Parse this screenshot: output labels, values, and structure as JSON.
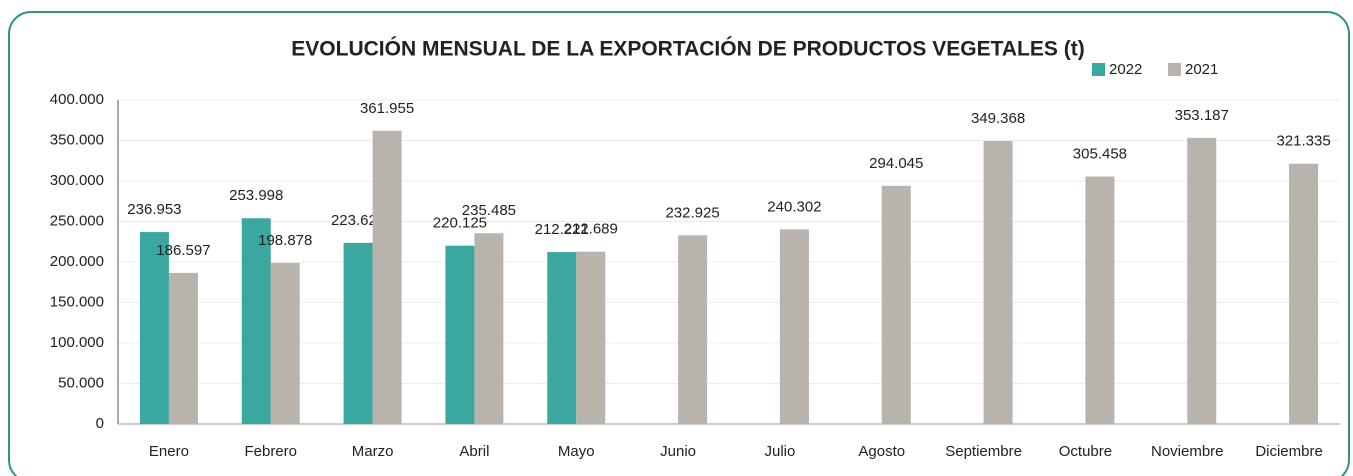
{
  "chart_data": {
    "type": "bar",
    "title": "EVOLUCIÓN MENSUAL DE LA EXPORTACIÓN DE PRODUCTOS VEGETALES (t)",
    "categories": [
      "Enero",
      "Febrero",
      "Marzo",
      "Abril",
      "Mayo",
      "Junio",
      "Julio",
      "Agosto",
      "Septiembre",
      "Octubre",
      "Noviembre",
      "Diciembre"
    ],
    "series": [
      {
        "name": "2022",
        "color": "#3aa89f",
        "values": [
          236953,
          253998,
          223628,
          220125,
          212221,
          null,
          null,
          null,
          null,
          null,
          null,
          null
        ],
        "value_labels": [
          "236.953",
          "253.998",
          "223.628",
          "220.125",
          "212.221",
          null,
          null,
          null,
          null,
          null,
          null,
          null
        ]
      },
      {
        "name": "2021",
        "color": "#b9b3ae",
        "values": [
          186597,
          198878,
          361955,
          235485,
          212689,
          232925,
          240302,
          294045,
          349368,
          305458,
          353187,
          321335
        ],
        "value_labels": [
          "186.597",
          "198.878",
          "361.955",
          "235.485",
          "212.689",
          "232.925",
          "240.302",
          "294.045",
          "349.368",
          "305.458",
          "353.187",
          "321.335"
        ]
      }
    ],
    "ylim": [
      0,
      400000
    ],
    "yticks": [
      0,
      {
        "value": 50000,
        "label": "50.000"
      },
      {
        "value": 100000,
        "label": "100.000"
      },
      {
        "value": 150000,
        "label": "150.000"
      },
      {
        "value": 200000,
        "label": "200.000"
      },
      {
        "value": 250000,
        "label": "250.000"
      },
      {
        "value": 300000,
        "label": "300.000"
      },
      {
        "value": 350000,
        "label": "350.000"
      },
      {
        "value": 400000,
        "label": "400.000"
      }
    ],
    "grid": true,
    "legend": "top-right"
  }
}
